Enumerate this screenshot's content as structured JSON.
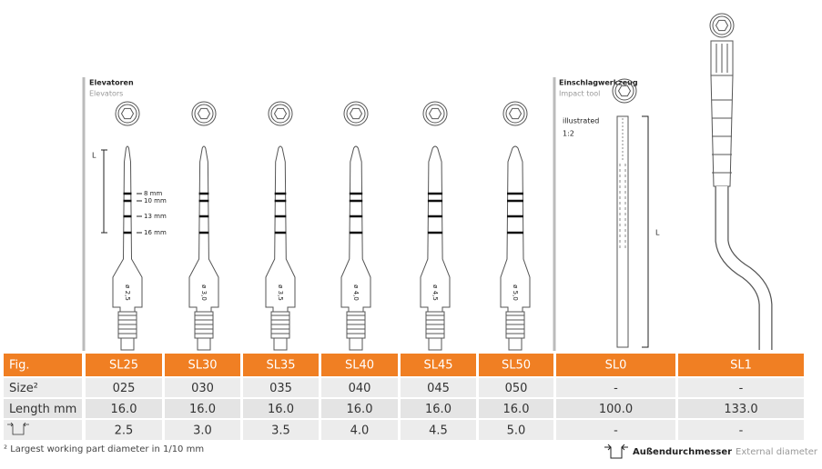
{
  "headers": {
    "elevators_de": "Elevatoren",
    "elevators_en": "Elevators",
    "impact_de": "Einschlagwerkzeug",
    "impact_en": "Impact tool",
    "scale_note": "illustrated",
    "scale": "1:2"
  },
  "drawing_labels": {
    "length_elevators": "L",
    "length_sl0": "L",
    "depths": [
      "8 mm",
      "10 mm",
      "13 mm",
      "16 mm"
    ],
    "diameters": [
      "ø 2,5",
      "ø 3,0",
      "ø 3,5",
      "ø 4,0",
      "ø 4,5",
      "ø 5,0"
    ]
  },
  "table": {
    "header": [
      "Fig.",
      "SL25",
      "SL30",
      "SL35",
      "SL40",
      "SL45",
      "SL50",
      "SL0",
      "SL1"
    ],
    "rows": [
      {
        "label": "Size²",
        "cells": [
          "025",
          "030",
          "035",
          "040",
          "045",
          "050",
          "-",
          "-"
        ]
      },
      {
        "label": "Length mm",
        "cells": [
          "16.0",
          "16.0",
          "16.0",
          "16.0",
          "16.0",
          "16.0",
          "100.0",
          "133.0"
        ]
      },
      {
        "cells": [
          "2.5",
          "3.0",
          "3.5",
          "4.0",
          "4.5",
          "5.0",
          "-",
          "-"
        ]
      }
    ]
  },
  "footnote": "² Largest working part diameter in 1/10 mm",
  "legend": {
    "de": "Außendurchmesser",
    "en": "External diameter"
  }
}
